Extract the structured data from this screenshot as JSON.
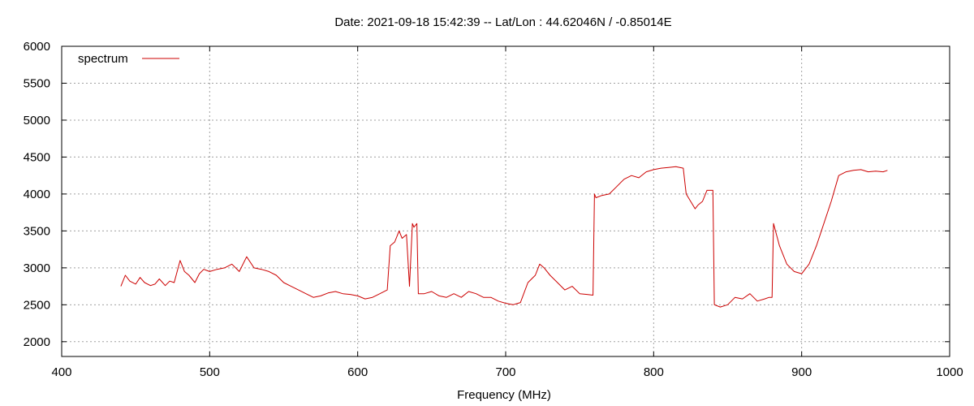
{
  "chart_data": {
    "type": "line",
    "title": "Date: 2021-09-18 15:42:39  --  Lat/Lon : 44.62046N / -0.85014E",
    "xlabel": "Frequency (MHz)",
    "ylabel": "",
    "xlim": [
      400,
      1000
    ],
    "ylim": [
      1800,
      6000
    ],
    "xticks": [
      400,
      500,
      600,
      700,
      800,
      900,
      1000
    ],
    "yticks": [
      2000,
      2500,
      3000,
      3500,
      4000,
      4500,
      5000,
      5500,
      6000
    ],
    "grid": true,
    "legend_position": "top-left",
    "series": [
      {
        "name": "spectrum",
        "color": "#cc0000",
        "x": [
          440,
          443,
          446,
          450,
          453,
          456,
          460,
          463,
          466,
          470,
          473,
          476,
          480,
          483,
          486,
          490,
          493,
          496,
          500,
          505,
          510,
          515,
          520,
          525,
          530,
          535,
          540,
          545,
          550,
          555,
          560,
          565,
          570,
          575,
          580,
          585,
          590,
          595,
          600,
          605,
          610,
          615,
          620,
          622,
          625,
          628,
          630,
          633,
          635,
          637,
          638,
          640,
          641,
          645,
          650,
          655,
          660,
          665,
          670,
          675,
          680,
          685,
          690,
          695,
          700,
          705,
          710,
          715,
          720,
          723,
          726,
          730,
          735,
          740,
          745,
          750,
          755,
          759,
          760,
          761,
          765,
          770,
          775,
          780,
          785,
          790,
          795,
          800,
          805,
          810,
          815,
          820,
          822,
          825,
          828,
          830,
          833,
          836,
          840,
          841,
          845,
          850,
          855,
          860,
          865,
          870,
          875,
          878,
          880,
          881,
          885,
          890,
          895,
          900,
          905,
          910,
          915,
          920,
          925,
          930,
          935,
          940,
          945,
          950,
          955,
          958
        ],
        "values": [
          2750,
          2900,
          2820,
          2780,
          2870,
          2800,
          2760,
          2780,
          2850,
          2760,
          2820,
          2800,
          3100,
          2950,
          2900,
          2800,
          2920,
          2980,
          2950,
          2980,
          3000,
          3050,
          2950,
          3150,
          3000,
          2980,
          2950,
          2900,
          2800,
          2750,
          2700,
          2650,
          2600,
          2620,
          2660,
          2680,
          2650,
          2640,
          2620,
          2580,
          2600,
          2650,
          2700,
          3300,
          3350,
          3500,
          3400,
          3450,
          2750,
          3600,
          3550,
          3600,
          2650,
          2650,
          2680,
          2620,
          2600,
          2650,
          2600,
          2680,
          2650,
          2600,
          2600,
          2550,
          2520,
          2500,
          2530,
          2800,
          2900,
          3050,
          3000,
          2900,
          2800,
          2700,
          2750,
          2650,
          2640,
          2630,
          4000,
          3950,
          3980,
          4000,
          4100,
          4200,
          4250,
          4220,
          4300,
          4330,
          4350,
          4360,
          4370,
          4350,
          4000,
          3900,
          3800,
          3850,
          3900,
          4050,
          4050,
          2500,
          2470,
          2500,
          2600,
          2580,
          2650,
          2550,
          2580,
          2600,
          2600,
          3600,
          3300,
          3050,
          2950,
          2920,
          3050,
          3300,
          3600,
          3900,
          4250,
          4300,
          4320,
          4330,
          4300,
          4310,
          4300,
          4320
        ]
      }
    ]
  }
}
